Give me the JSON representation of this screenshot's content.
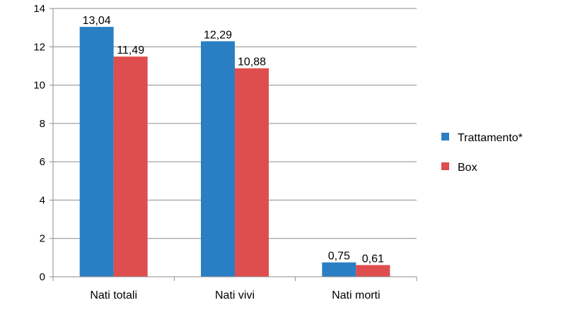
{
  "chart_data": {
    "type": "bar",
    "title": "",
    "xlabel": "",
    "ylabel": "",
    "categories": [
      "Nati totali",
      "Nati vivi",
      "Nati morti"
    ],
    "series": [
      {
        "name": "Trattamento*",
        "color": "#2a7fc4",
        "values": [
          13.04,
          12.29,
          0.75
        ],
        "labels": [
          "13,04",
          "12,29",
          "0,75"
        ]
      },
      {
        "name": "Box",
        "color": "#df4e4e",
        "values": [
          11.49,
          10.88,
          0.61
        ],
        "labels": [
          "11,49",
          "10,88",
          "0,61"
        ]
      }
    ],
    "ylim": [
      0,
      14
    ],
    "yticks": [
      0,
      2,
      4,
      6,
      8,
      10,
      12,
      14
    ],
    "grid": true,
    "legend": "right"
  }
}
